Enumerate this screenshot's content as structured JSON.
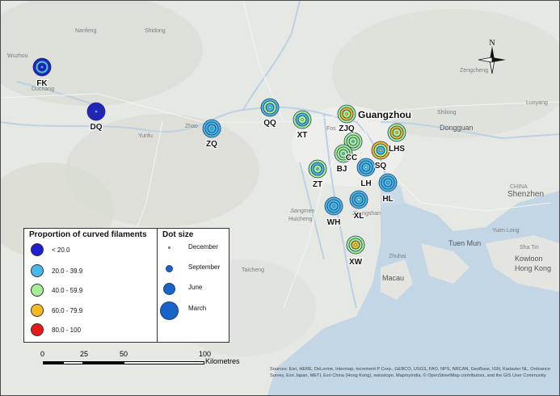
{
  "legend_proportion": {
    "title": "Proportion of curved filaments",
    "classes": [
      {
        "label": "< 20.0",
        "color": "#1f1fd1"
      },
      {
        "label": "20.0 - 39.9",
        "color": "#47b8ea"
      },
      {
        "label": "40.0 - 59.9",
        "color": "#a6ee96"
      },
      {
        "label": "60.0 - 79.9",
        "color": "#f5b921"
      },
      {
        "label": "80.0 - 100",
        "color": "#e81a1a"
      }
    ]
  },
  "legend_size": {
    "title": "Dot size",
    "items": [
      {
        "label": "December"
      },
      {
        "label": "September"
      },
      {
        "label": "June"
      },
      {
        "label": "March"
      }
    ]
  },
  "sites": [
    {
      "code": "FK",
      "rings": [
        "#1f1fd1",
        "#47b8ea",
        "#1f1fd1",
        "#47b8ea"
      ]
    },
    {
      "code": "DQ",
      "rings": [
        "#1f1fd1",
        "#1f1fd1",
        "#1f1fd1",
        "#47b8ea"
      ]
    },
    {
      "code": "ZQ",
      "rings": [
        "#47b8ea",
        "#47b8ea",
        "#47b8ea",
        "#47b8ea"
      ]
    },
    {
      "code": "QQ",
      "rings": [
        "#47b8ea",
        "#a6ee96",
        "#47b8ea",
        "#a6ee96"
      ]
    },
    {
      "code": "XT",
      "rings": [
        "#a6ee96",
        "#47b8ea",
        "#a6ee96",
        "#a6ee96"
      ]
    },
    {
      "code": "ZJQ",
      "rings": [
        "#a6ee96",
        "#f5b921",
        "#a6ee96",
        "#f5b921"
      ]
    },
    {
      "code": "CC",
      "rings": [
        "#a6ee96",
        "#a6ee96",
        "#a6ee96",
        "#47b8ea"
      ]
    },
    {
      "code": "LHS",
      "rings": [
        "#a6ee96",
        "#f5b921",
        "#a6ee96",
        "#f5b921"
      ]
    },
    {
      "code": "SQ",
      "rings": [
        "#f5b921",
        "#a6ee96",
        "#47b8ea",
        "#f5b921"
      ]
    },
    {
      "code": "BJ",
      "rings": [
        "#a6ee96",
        "#a6ee96",
        "#a6ee96",
        "#47b8ea"
      ]
    },
    {
      "code": "ZT",
      "rings": [
        "#a6ee96",
        "#47b8ea",
        "#a6ee96",
        "#47b8ea"
      ]
    },
    {
      "code": "LH",
      "rings": [
        "#47b8ea",
        "#47b8ea",
        "#47b8ea",
        "#a6ee96"
      ]
    },
    {
      "code": "HL",
      "rings": [
        "#47b8ea",
        "#47b8ea",
        "#47b8ea",
        "#47b8ea"
      ]
    },
    {
      "code": "XL",
      "rings": [
        "#47b8ea",
        "#47b8ea",
        "#47b8ea",
        "#a6ee96"
      ]
    },
    {
      "code": "WH",
      "rings": [
        "#47b8ea",
        "#47b8ea",
        "#47b8ea",
        "#47b8ea"
      ]
    },
    {
      "code": "XW",
      "rings": [
        "#a6ee96",
        "#a6ee96",
        "#f5b921",
        "#a6ee96"
      ]
    }
  ],
  "map_labels": {
    "guangzhou": "Guangzhou",
    "shenzhen": "Shenzhen",
    "dongguan": "Dongguan",
    "hong_kong": "Hong Kong",
    "kowloon": "Kowloon",
    "tuen_mun": "Tuen Mun",
    "macau": "Macau",
    "zhuhai": "Zhuhai",
    "jiangmen": "Jiangmen",
    "huicheng": "Huicheng",
    "taicheng": "Taicheng",
    "yunfu": "Yunfu",
    "zhaoqing": "Zhao",
    "wuzhou": "Wuzhou",
    "duchang": "Duchang",
    "nanfeng": "Nanfeng",
    "shidong": "Shidong",
    "zengcheng": "Zengcheng",
    "shilong": "Shilong",
    "luoyang": "Luoyang",
    "foshan": "Fos",
    "zhongshan": "Zhongshan",
    "china": "CHINA",
    "sha_tin": "Sha Tin",
    "yuen_long": "Yuen Long"
  },
  "north_arrow": {
    "label": "N"
  },
  "scale_bar": {
    "ticks": [
      "0",
      "25",
      "50",
      "100"
    ],
    "unit": "Kilometres"
  },
  "source_note": "Sources: Esri, HERE, DeLorme, Intermap, increment P Corp., GEBCO, USGS, FAO, NPS, NRCAN, GeoBase, IGN, Kadaster NL, Ordnance Survey, Esri Japan, METI, Esri China (Hong Kong), swisstopo, MapmyIndia, © OpenStreetMap contributors, and the GIS User Community"
}
